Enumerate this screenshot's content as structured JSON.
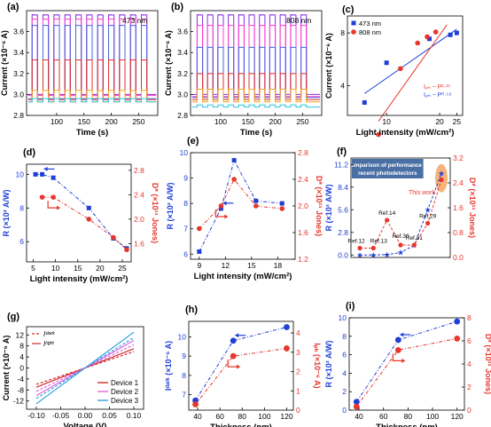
{
  "colors": {
    "blue": "#1f3fd6",
    "red": "#e8362c",
    "axis": "#000000"
  },
  "panels": [
    {
      "id": "a",
      "label": "(a)",
      "type": "timeseries",
      "annotation": "473 nm",
      "xlabel": "Time (s)",
      "ylabel": "Current (×10⁻⁶ A)",
      "xlim": [
        45,
        285
      ],
      "ylim": [
        2.8,
        3.8
      ],
      "xticks": [
        100,
        150,
        200,
        250
      ],
      "yticks": [
        2.8,
        3.0,
        3.2,
        3.4,
        3.6
      ],
      "on_start": 55,
      "period": 20,
      "on_dur": 10,
      "cycles": 11,
      "series": [
        {
          "color": "#8a2be2",
          "off": 3.0,
          "on": 3.76
        },
        {
          "color": "#ff3ccf",
          "off": 2.99,
          "on": 3.72
        },
        {
          "color": "#4169e1",
          "off": 2.96,
          "on": 3.66
        },
        {
          "color": "#e0322a",
          "off": 2.95,
          "on": 3.33
        },
        {
          "color": "#f5a623",
          "off": 2.93,
          "on": 3.04
        },
        {
          "color": "#2ec4e0",
          "off": 2.93,
          "on": 2.96
        }
      ]
    },
    {
      "id": "b",
      "label": "(b)",
      "type": "timeseries",
      "annotation": "808 nm",
      "xlabel": "Time (s)",
      "ylabel": "Current (×10⁻⁶ A)",
      "xlim": [
        45,
        285
      ],
      "ylim": [
        2.8,
        3.8
      ],
      "xticks": [
        100,
        150,
        200,
        250
      ],
      "yticks": [
        2.8,
        3.0,
        3.2,
        3.4,
        3.6
      ],
      "on_start": 57,
      "period": 19,
      "on_dur": 10,
      "cycles": 11,
      "series": [
        {
          "color": "#8a2be2",
          "off": 3.0,
          "on": 3.76
        },
        {
          "color": "#ff3ccf",
          "off": 2.98,
          "on": 3.66
        },
        {
          "color": "#4169e1",
          "off": 2.97,
          "on": 3.45
        },
        {
          "color": "#e0322a",
          "off": 2.95,
          "on": 3.2
        },
        {
          "color": "#f5a623",
          "off": 2.93,
          "on": 3.05
        },
        {
          "color": "#2ec4e0",
          "off": 2.88,
          "on": 2.9
        }
      ]
    },
    {
      "id": "c",
      "label": "(c)",
      "type": "loglog",
      "xlabel": "Light intensity (mW/cm²)",
      "ylabel": "Current (×10⁻⁶ A)",
      "xlim": [
        6,
        27
      ],
      "ylim": [
        2.7,
        10
      ],
      "xticks": [
        10,
        20,
        25
      ],
      "yticks": [
        4,
        8
      ],
      "legend": [
        "473 nm",
        "808 nm"
      ],
      "fit_labels": [
        "Iₚₕ ~ P¹·¹³",
        "Iₚₕ ~ P⁰·⁵⁹"
      ],
      "series": [
        {
          "name": "473 nm",
          "color": "#1f3fd6",
          "marker": "square",
          "x": [
            7.5,
            10,
            17.5,
            23,
            25
          ],
          "y": [
            3.2,
            5.4,
            7.4,
            7.8,
            8.0
          ]
        },
        {
          "name": "808 nm",
          "color": "#e8362c",
          "marker": "circle",
          "x": [
            9,
            12,
            15,
            17,
            19
          ],
          "y": [
            2.1,
            5.0,
            7.0,
            7.6,
            8.1
          ]
        }
      ],
      "fits": [
        {
          "color": "#1f3fd6",
          "x": [
            7.5,
            25
          ],
          "y": [
            3.6,
            8.4
          ]
        },
        {
          "color": "#e8362c",
          "x": [
            9,
            22
          ],
          "y": [
            2.5,
            8.9
          ]
        }
      ]
    },
    {
      "id": "d",
      "label": "(d)",
      "type": "dual",
      "xlabel": "Light intensity (mW/cm²)",
      "ylabel": "R (×10² A/W)",
      "y2label": "D* (×10¹¹ Jones)",
      "xlim": [
        3.5,
        27
      ],
      "xticks": [
        5,
        10,
        15,
        20,
        25
      ],
      "ylim": [
        4.8,
        10.6
      ],
      "yticks": [
        6,
        8,
        10
      ],
      "y2lim": [
        1.3,
        2.9
      ],
      "y2ticks": [
        1.6,
        2.0,
        2.4,
        2.8
      ],
      "left": {
        "x": [
          5.5,
          7,
          9.5,
          17.5,
          23,
          26
        ],
        "y": [
          10,
          10,
          9.8,
          8,
          6.2,
          5.6
        ]
      },
      "right": {
        "x": [
          7,
          9.5,
          17.5,
          23,
          26
        ],
        "y": [
          2.36,
          2.36,
          2.0,
          1.7,
          1.5
        ]
      }
    },
    {
      "id": "e",
      "label": "(e)",
      "type": "dual",
      "xlabel": "Light intensity (mW/cm²)",
      "ylabel": "R (×10² A/W)",
      "y2label": "D* (×10¹¹ Jones)",
      "xlim": [
        8,
        20
      ],
      "xticks": [
        9,
        12,
        15,
        18
      ],
      "ylim": [
        5.8,
        10
      ],
      "yticks": [
        6,
        7,
        8,
        9,
        10
      ],
      "y2lim": [
        1.2,
        2.8
      ],
      "y2ticks": [
        1.2,
        1.6,
        2.0,
        2.4,
        2.8
      ],
      "left": {
        "x": [
          9,
          11.5,
          13,
          15.5,
          18.5
        ],
        "y": [
          6.1,
          7.8,
          9.7,
          8.1,
          8.0
        ]
      },
      "right": {
        "x": [
          9,
          11.5,
          13,
          15.5,
          18.5
        ],
        "y": [
          1.66,
          2.0,
          2.4,
          2.0,
          1.96
        ]
      }
    },
    {
      "id": "f",
      "label": "(f)",
      "type": "comparison",
      "ylabel": "R (×10³ A/W)",
      "y2label": "D* (×10¹¹ Jones)",
      "ylim": [
        -0.3,
        12
      ],
      "yticks": [
        0.0,
        2.8,
        5.6,
        8.4,
        11.2
      ],
      "y2lim": [
        0,
        3.2
      ],
      "y2ticks": [
        0,
        0.8,
        1.6,
        2.4,
        3.2
      ],
      "box_title": "Comparison of performance in recent photodetectors",
      "this_work": "This work",
      "refs": [
        "Ref.12",
        "Ref.13",
        "Ref.14",
        "Ref.30",
        "Ref.31",
        "Ref.29"
      ],
      "left_y": [
        0,
        0,
        0.05,
        0.3,
        1.2,
        5.6,
        10.1
      ],
      "right_y": [
        0.3,
        0.3,
        1.2,
        0.4,
        0.4,
        1.1,
        2.5
      ]
    },
    {
      "id": "g",
      "label": "(g)",
      "type": "iv",
      "xlabel": "Voltage (V)",
      "ylabel": "Current (×10⁻⁶ A)",
      "xlim": [
        -0.12,
        0.12
      ],
      "xticks": [
        -0.1,
        -0.05,
        0.0,
        0.05,
        0.1
      ],
      "ylim": [
        -15,
        15
      ],
      "yticks": [
        -12,
        -8,
        -4,
        0,
        4,
        8,
        12
      ],
      "legend_top": [
        "Iᵈᵃʳᵏ",
        "Iˡⁱᵍʰᵗ"
      ],
      "devices": [
        {
          "name": "Device 1",
          "color": "#d12a2a",
          "slope": 70
        },
        {
          "name": "Device 2",
          "color": "#e066e0",
          "slope": 100
        },
        {
          "name": "Device 3",
          "color": "#2fa0e0",
          "slope": 130
        }
      ]
    },
    {
      "id": "h",
      "label": "(h)",
      "type": "dual",
      "xlabel": "Thickness (nm)",
      "ylabel": "Iᵈᵃʳᵏ (×10⁻⁶ A)",
      "y2label": "Iₚₕ (×10⁻⁶ A)",
      "xlim": [
        32,
        126
      ],
      "xticks": [
        40,
        60,
        80,
        100,
        120
      ],
      "ylim": [
        6.2,
        10.8
      ],
      "yticks": [
        7,
        8,
        9,
        10
      ],
      "y2lim": [
        0,
        4.6
      ],
      "y2ticks": [
        0,
        1,
        2,
        3,
        4
      ],
      "left": {
        "x": [
          38,
          72,
          120
        ],
        "y": [
          6.7,
          9.8,
          10.5
        ]
      },
      "right": {
        "x": [
          38,
          72,
          120
        ],
        "y": [
          0.3,
          2.8,
          3.2
        ]
      }
    },
    {
      "id": "i",
      "label": "(i)",
      "type": "dual",
      "xlabel": "Thickness (nm)",
      "ylabel": "R (×10³ A/W)",
      "y2label": "D* (×10¹¹ Jones)",
      "xlim": [
        32,
        126
      ],
      "xticks": [
        40,
        60,
        80,
        100,
        120
      ],
      "ylim": [
        0,
        10
      ],
      "yticks": [
        0,
        2,
        4,
        6,
        8,
        10
      ],
      "y2lim": [
        0,
        8
      ],
      "y2ticks": [
        0,
        2,
        4,
        6,
        8
      ],
      "left": {
        "x": [
          38,
          72,
          120
        ],
        "y": [
          0.9,
          7.6,
          9.6
        ]
      },
      "right": {
        "x": [
          38,
          72,
          120
        ],
        "y": [
          0.3,
          5.2,
          6.2
        ]
      }
    }
  ]
}
